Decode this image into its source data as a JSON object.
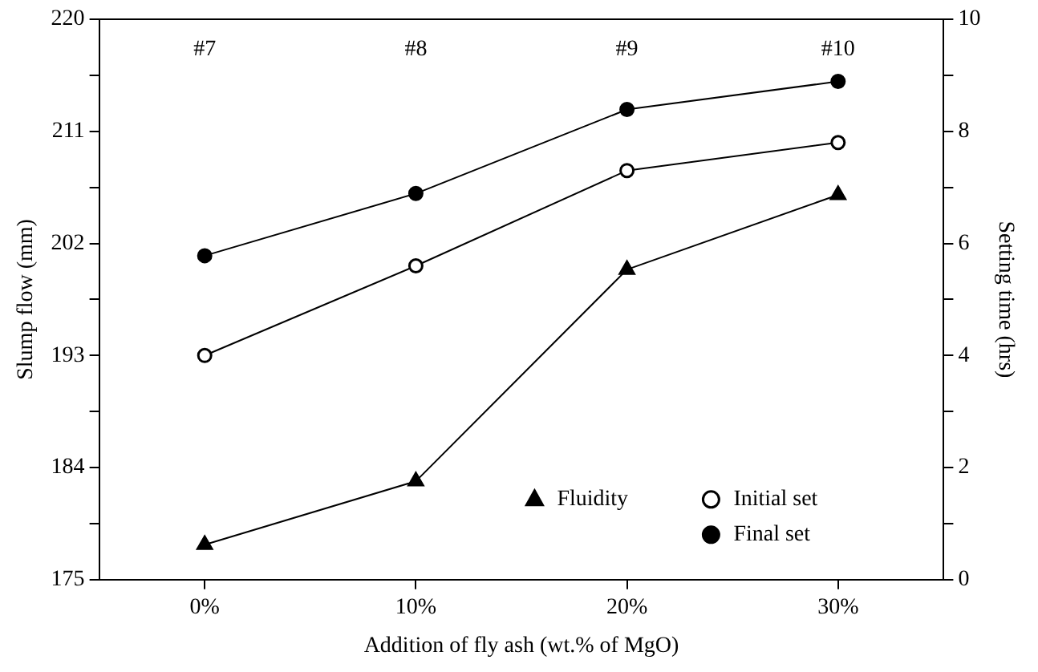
{
  "chart_data": {
    "type": "line",
    "xlabel": "Addition of fly ash (wt.% of MgO)",
    "ylabel": "Slump flow (mm)",
    "y2label": "Setting time (hrs)",
    "categories": [
      "0%",
      "10%",
      "20%",
      "30%"
    ],
    "series": [
      {
        "name": "Fluidity",
        "color": "#000000",
        "marker": "triangle",
        "values": [
          177.8,
          182.9,
          199.9,
          205.9
        ]
      },
      {
        "name": "Initial set",
        "color": "#000000",
        "marker": "circle",
        "axis": "y2",
        "values": [
          4.0,
          5.6,
          7.3,
          7.8
        ]
      },
      {
        "name": "Final set",
        "color": "#000000",
        "marker": "circle",
        "axis": "y2",
        "values": [
          5.78,
          6.89,
          8.39,
          8.89
        ]
      }
    ],
    "ylim": [
      175,
      220
    ],
    "yticks": [
      175,
      {
        "value": 179.5,
        "label": null
      },
      184,
      {
        "value": 188.5,
        "label": null
      },
      193,
      {
        "value": 197.5,
        "label": null
      },
      202,
      {
        "value": 206.5,
        "label": null
      },
      211,
      {
        "value": 215.5,
        "label": null
      },
      220
    ],
    "y2lim": [
      0,
      10
    ],
    "y2ticks": [
      0,
      {
        "value": 1,
        "label": null
      },
      2,
      {
        "value": 3,
        "label": null
      },
      4,
      {
        "value": 5,
        "label": null
      },
      6,
      {
        "value": 7,
        "label": null
      },
      8,
      {
        "value": 9,
        "label": null
      },
      10
    ],
    "annotations": [
      "#7",
      "#8",
      "#9",
      "#10"
    ],
    "grid": false,
    "legend": "bottom right",
    "line_style": "solid"
  }
}
